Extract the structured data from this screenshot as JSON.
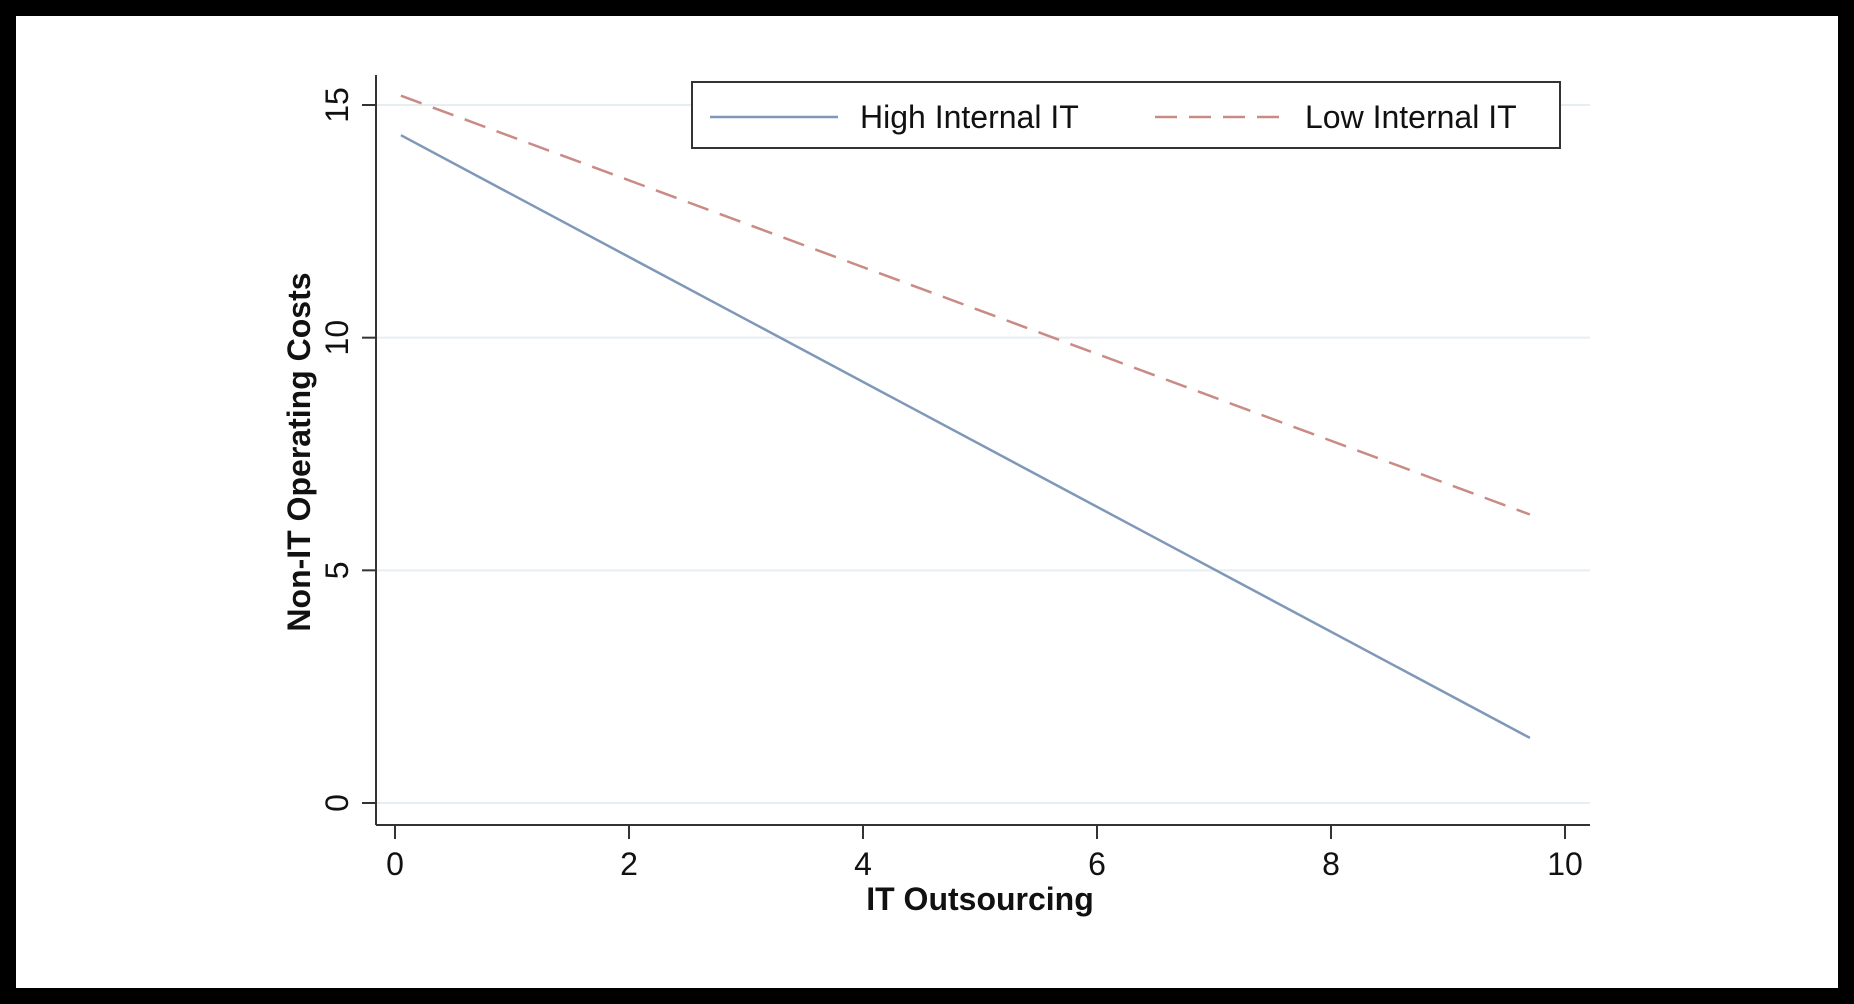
{
  "chart_data": {
    "type": "line",
    "title": "",
    "xlabel": "IT Outsourcing",
    "ylabel": "Non-IT Operating Costs",
    "xlim": [
      0,
      10
    ],
    "ylim": [
      0,
      15
    ],
    "x_ticks": [
      0,
      2,
      4,
      6,
      8,
      10
    ],
    "y_ticks": [
      0,
      5,
      10,
      15
    ],
    "grid": "horizontal",
    "legend_position": "top-right",
    "series": [
      {
        "name": "High Internal IT",
        "style": "solid",
        "color": "#7f98b8",
        "x": [
          0.05,
          9.7
        ],
        "y": [
          14.35,
          1.4
        ]
      },
      {
        "name": "Low Internal IT",
        "style": "dashed",
        "color": "#c98b86",
        "x": [
          0.05,
          9.7
        ],
        "y": [
          15.2,
          6.2
        ]
      }
    ]
  }
}
